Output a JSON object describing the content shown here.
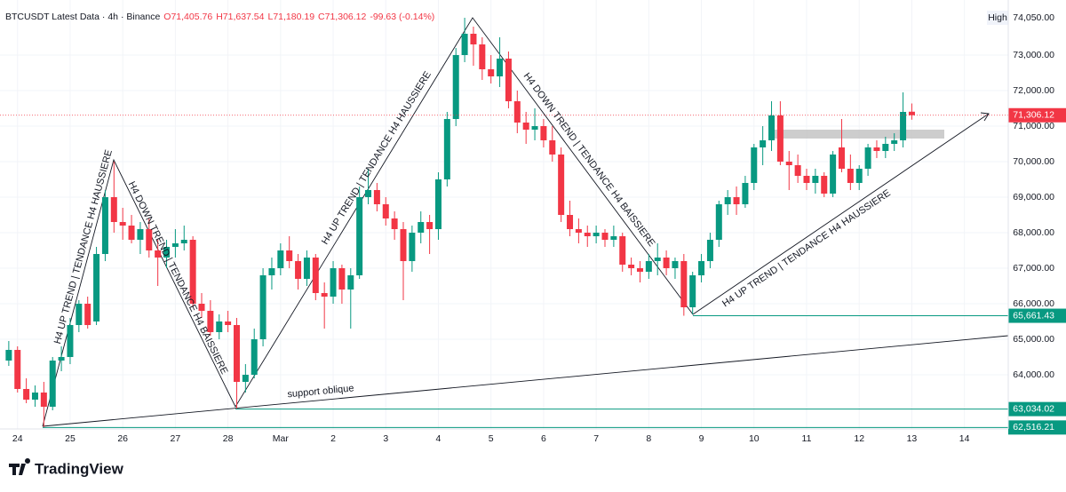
{
  "chart_data": {
    "type": "candlestick",
    "header": {
      "symbol": "BTCUSDT Latest Data · 4h · Binance",
      "ohlc": [
        "O71,405.76",
        "H71,637.54",
        "L71,180.19",
        "C71,306.12"
      ],
      "change": "-99.63 (-0.14%)"
    },
    "up_color": "#089981",
    "down_color": "#f23645",
    "grid": true,
    "xlim": [
      -8,
      452
    ],
    "ylim": [
      62475,
      74300
    ],
    "xticks": [
      {
        "value": 0,
        "label": "24"
      },
      {
        "value": 24,
        "label": "25"
      },
      {
        "value": 48,
        "label": "26"
      },
      {
        "value": 72,
        "label": "27"
      },
      {
        "value": 96,
        "label": "28"
      },
      {
        "value": 120,
        "label": "Mar"
      },
      {
        "value": 144,
        "label": "2"
      },
      {
        "value": 168,
        "label": "3"
      },
      {
        "value": 192,
        "label": "4"
      },
      {
        "value": 216,
        "label": "5"
      },
      {
        "value": 240,
        "label": "6"
      },
      {
        "value": 264,
        "label": "7"
      },
      {
        "value": 288,
        "label": "8"
      },
      {
        "value": 312,
        "label": "9"
      },
      {
        "value": 336,
        "label": "10"
      },
      {
        "value": 360,
        "label": "11"
      },
      {
        "value": 384,
        "label": "12"
      },
      {
        "value": 408,
        "label": "13"
      },
      {
        "value": 432,
        "label": "14"
      }
    ],
    "yticks": [
      {
        "value": 64000,
        "label": "64,000.00"
      },
      {
        "value": 65000,
        "label": "65,000.00"
      },
      {
        "value": 66000,
        "label": "66,000.00"
      },
      {
        "value": 67000,
        "label": "67,000.00"
      },
      {
        "value": 68000,
        "label": "68,000.00"
      },
      {
        "value": 69000,
        "label": "69,000.00"
      },
      {
        "value": 70000,
        "label": "70,000.00"
      },
      {
        "value": 71000,
        "label": "71,000.00"
      },
      {
        "value": 72000,
        "label": "72,000.00"
      },
      {
        "value": 73000,
        "label": "73,000.00"
      }
    ],
    "high_marker": {
      "text": "High",
      "price": 74050,
      "price_label": "74,050.00"
    },
    "last_price": {
      "value": 71306.12,
      "label": "71,306.12"
    },
    "price_levels": [
      {
        "value": 65661.43,
        "label": "65,661.43"
      },
      {
        "value": 63034.02,
        "label": "63,034.02"
      },
      {
        "value": 62516.21,
        "label": "62,516.21"
      }
    ],
    "annotations": [
      "H4 UP TREND | TENDANCE H4 HAUSSIERE",
      "H4 DOWN TREND | TENDANCE H4 BAISSIERE",
      "H4 UP TREND | TENDANCE H4 HAUSSIERE",
      "H4 DOWN TREND | TENDANCE H4 BAISSIERE",
      "H4 UP TREND | TENDANCE H4 HAUSSIERE",
      "support oblique"
    ],
    "x": [
      -4,
      0,
      4,
      8,
      12,
      16,
      20,
      24,
      28,
      32,
      36,
      40,
      44,
      48,
      52,
      56,
      60,
      64,
      68,
      72,
      76,
      80,
      84,
      88,
      92,
      96,
      100,
      104,
      108,
      112,
      116,
      120,
      124,
      128,
      132,
      136,
      140,
      144,
      148,
      152,
      156,
      160,
      164,
      168,
      172,
      176,
      180,
      184,
      188,
      192,
      196,
      200,
      204,
      208,
      212,
      216,
      220,
      224,
      228,
      232,
      236,
      240,
      244,
      248,
      252,
      256,
      260,
      264,
      268,
      272,
      276,
      280,
      284,
      288,
      292,
      296,
      300,
      304,
      308,
      312,
      316,
      320,
      324,
      328,
      332,
      336,
      340,
      344,
      348,
      352,
      356,
      360,
      364,
      368,
      372,
      376,
      380,
      384,
      388,
      392,
      396,
      400,
      404,
      408
    ],
    "open": [
      64400,
      64700,
      63600,
      63300,
      63500,
      63100,
      64400,
      64500,
      65400,
      66000,
      65500,
      67400,
      69000,
      68300,
      68200,
      67800,
      68100,
      67500,
      67300,
      67600,
      67700,
      67800,
      66000,
      65800,
      65200,
      65500,
      65400,
      63800,
      64000,
      65000,
      66800,
      67000,
      67500,
      67200,
      66700,
      67300,
      66300,
      66200,
      67000,
      66400,
      66800,
      69000,
      69200,
      68800,
      68400,
      68100,
      67200,
      68000,
      68300,
      68100,
      69500,
      71200,
      73000,
      73600,
      73300,
      72600,
      72400,
      72900,
      71700,
      71100,
      70900,
      71000,
      70600,
      70200,
      68500,
      68100,
      68000,
      67900,
      68000,
      67800,
      67900,
      67100,
      67000,
      66900,
      67200,
      67300,
      67000,
      67200,
      65900,
      66800,
      67200,
      67800,
      68800,
      69000,
      68800,
      69400,
      70400,
      70600,
      71300,
      70000,
      69900,
      69600,
      69400,
      69600,
      69100,
      70400,
      69800,
      69400,
      69800,
      70400,
      70300,
      70500,
      70600,
      71405.76
    ],
    "high": [
      64950,
      64800,
      63900,
      63700,
      63800,
      64500,
      64800,
      65600,
      66100,
      66200,
      67600,
      69200,
      70000,
      68700,
      68500,
      68300,
      68400,
      67800,
      67800,
      68100,
      68200,
      67900,
      66300,
      66100,
      65700,
      65800,
      65600,
      64300,
      65300,
      67000,
      67300,
      67700,
      67900,
      67400,
      67500,
      67400,
      66600,
      67200,
      67100,
      67000,
      69300,
      69800,
      69400,
      69000,
      68600,
      68300,
      68200,
      68600,
      68500,
      69700,
      71400,
      73200,
      74050,
      73800,
      73500,
      73000,
      73500,
      73100,
      72000,
      71400,
      71500,
      71200,
      71000,
      70400,
      68900,
      68400,
      68200,
      68200,
      68100,
      68200,
      68000,
      67300,
      67200,
      67400,
      67700,
      67500,
      67300,
      67400,
      66900,
      67400,
      68000,
      68900,
      69200,
      69300,
      69600,
      70500,
      71000,
      71700,
      71700,
      70300,
      70200,
      69800,
      69800,
      69700,
      70300,
      71200,
      70200,
      69900,
      70500,
      70600,
      70700,
      70800,
      71950,
      71637.54
    ],
    "low": [
      64250,
      63500,
      63200,
      63100,
      62516.21,
      63000,
      64100,
      64300,
      65200,
      65300,
      65400,
      67200,
      68000,
      67800,
      67700,
      67400,
      67300,
      66500,
      67000,
      67300,
      67500,
      65900,
      65600,
      65100,
      65000,
      65200,
      63034.02,
      63500,
      63900,
      64800,
      66400,
      66800,
      67000,
      66400,
      66500,
      66100,
      65300,
      66000,
      66000,
      65300,
      66700,
      68800,
      68600,
      68200,
      67800,
      66100,
      66900,
      67700,
      67400,
      67800,
      69300,
      71000,
      72800,
      72700,
      72300,
      72200,
      72100,
      71500,
      70800,
      70500,
      70600,
      70400,
      70000,
      68300,
      67900,
      67700,
      67600,
      67700,
      67600,
      67600,
      66900,
      66800,
      66600,
      66700,
      66800,
      66800,
      66700,
      65661.43,
      65700,
      66600,
      67000,
      67600,
      68500,
      68500,
      68700,
      69200,
      69900,
      70300,
      69900,
      69200,
      69400,
      69200,
      69100,
      69000,
      69000,
      69700,
      69200,
      69200,
      69600,
      70100,
      70100,
      70300,
      70400,
      71180.19
    ],
    "close": [
      64700,
      63600,
      63300,
      63500,
      63100,
      64400,
      64500,
      65400,
      66000,
      65400,
      67400,
      69000,
      68300,
      68200,
      67800,
      68100,
      67500,
      67300,
      67600,
      67700,
      67800,
      66000,
      65800,
      65200,
      65500,
      65400,
      63800,
      64000,
      65000,
      66800,
      67000,
      67500,
      67200,
      66700,
      67300,
      66300,
      66200,
      67000,
      66400,
      66800,
      69000,
      69200,
      68800,
      68400,
      68100,
      67200,
      68000,
      68300,
      68100,
      69500,
      71200,
      73000,
      73600,
      73300,
      72600,
      72400,
      72900,
      71700,
      71100,
      70900,
      71000,
      70600,
      70200,
      68500,
      68100,
      68000,
      67900,
      68000,
      67800,
      67900,
      67100,
      67000,
      66900,
      67200,
      67300,
      67000,
      67200,
      65900,
      66800,
      67200,
      67800,
      68800,
      69000,
      68800,
      69400,
      70400,
      70600,
      71300,
      70000,
      69900,
      69600,
      69400,
      69600,
      69100,
      70200,
      69800,
      69400,
      69800,
      70400,
      70300,
      70500,
      70600,
      71400,
      71306.12
    ]
  },
  "footer": {
    "brand": "TradingView"
  }
}
